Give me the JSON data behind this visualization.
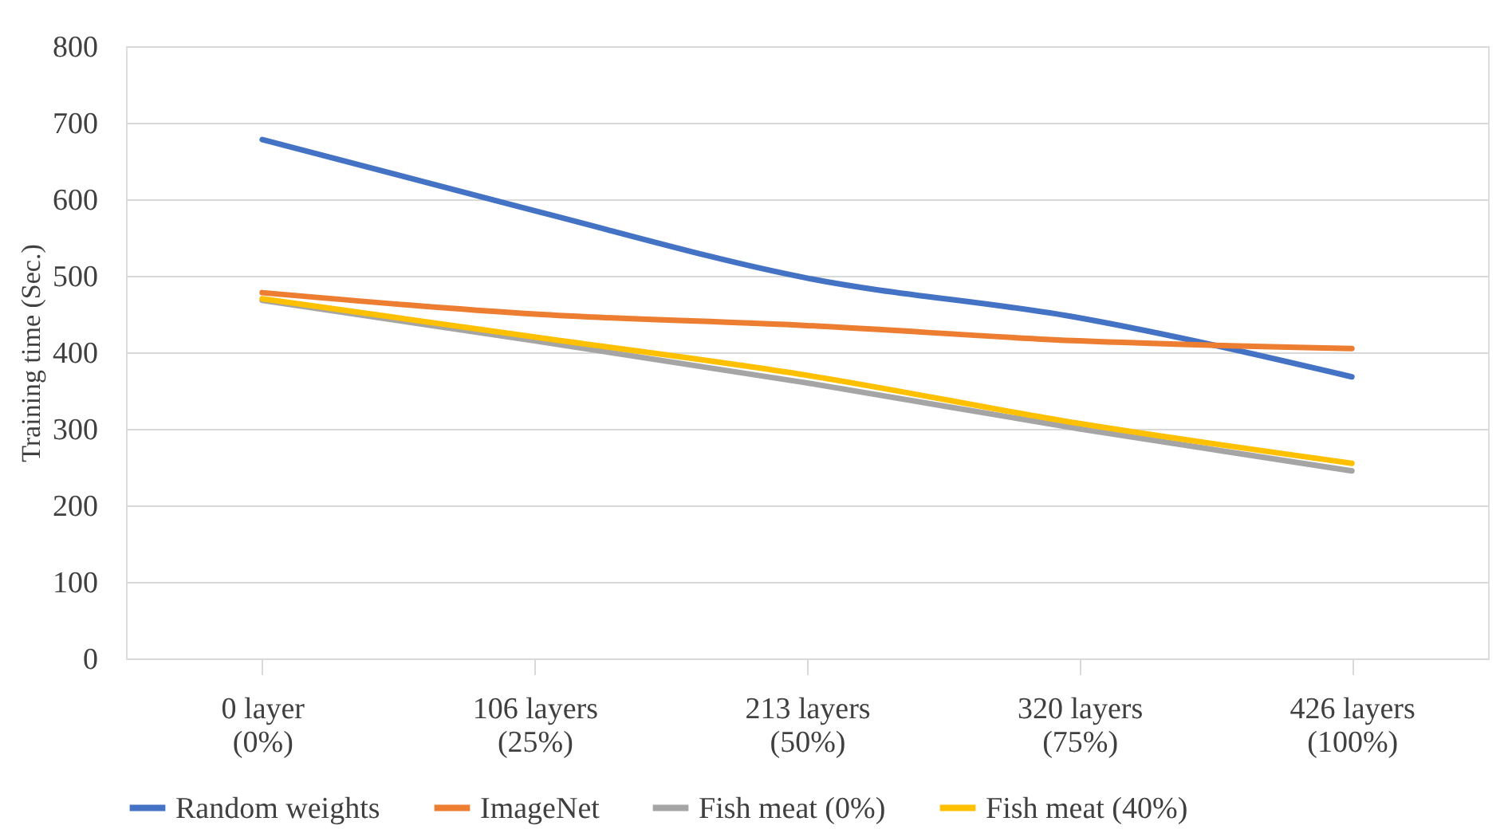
{
  "chart_data": {
    "type": "line",
    "ylabel": "Training time (Sec.)",
    "categories": [
      "0 layer\n(0%)",
      "106 layers\n(25%)",
      "213 layers\n(50%)",
      "320 layers\n(75%)",
      "426 layers\n(100%)"
    ],
    "series": [
      {
        "name": "Random weights",
        "color": "#4472c4",
        "values": [
          678,
          585,
          497,
          445,
          368
        ]
      },
      {
        "name": "ImageNet",
        "color": "#ed7d31",
        "values": [
          478,
          450,
          435,
          415,
          405
        ]
      },
      {
        "name": "Fish meat (0%)",
        "color": "#a5a5a5",
        "values": [
          468,
          415,
          360,
          300,
          245
        ]
      },
      {
        "name": "Fish meat (40%)",
        "color": "#ffc000",
        "values": [
          470,
          420,
          370,
          307,
          255
        ]
      }
    ],
    "ylim": [
      0,
      800
    ],
    "yticks": [
      0,
      100,
      200,
      300,
      400,
      500,
      600,
      700,
      800
    ],
    "grid": "y",
    "legend": "bottom",
    "marker": "none",
    "line_style": "solid"
  }
}
